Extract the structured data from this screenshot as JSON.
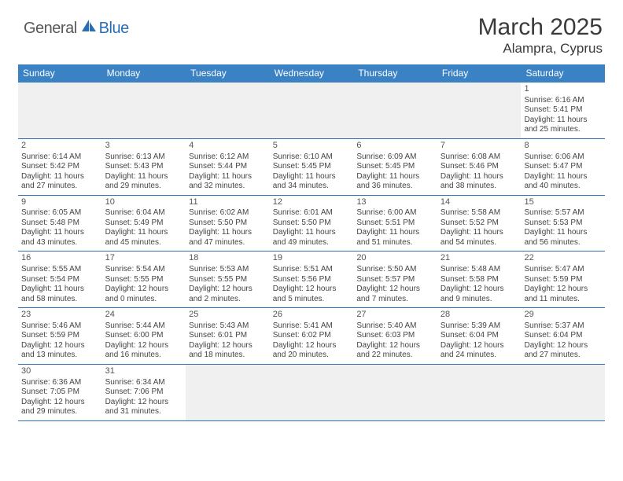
{
  "logo": {
    "part1": "General",
    "part2": "Blue"
  },
  "title": "March 2025",
  "location": "Alampra, Cyprus",
  "colors": {
    "header_bg": "#3b82c4",
    "border": "#2a6db5",
    "empty_bg": "#f0f0f0",
    "text": "#444444",
    "logo_gray": "#585858",
    "logo_blue": "#2a6db5"
  },
  "dow": [
    "Sunday",
    "Monday",
    "Tuesday",
    "Wednesday",
    "Thursday",
    "Friday",
    "Saturday"
  ],
  "weeks": [
    [
      null,
      null,
      null,
      null,
      null,
      null,
      {
        "d": "1",
        "sr": "6:16 AM",
        "ss": "5:41 PM",
        "dl": "11 hours and 25 minutes."
      }
    ],
    [
      {
        "d": "2",
        "sr": "6:14 AM",
        "ss": "5:42 PM",
        "dl": "11 hours and 27 minutes."
      },
      {
        "d": "3",
        "sr": "6:13 AM",
        "ss": "5:43 PM",
        "dl": "11 hours and 29 minutes."
      },
      {
        "d": "4",
        "sr": "6:12 AM",
        "ss": "5:44 PM",
        "dl": "11 hours and 32 minutes."
      },
      {
        "d": "5",
        "sr": "6:10 AM",
        "ss": "5:45 PM",
        "dl": "11 hours and 34 minutes."
      },
      {
        "d": "6",
        "sr": "6:09 AM",
        "ss": "5:45 PM",
        "dl": "11 hours and 36 minutes."
      },
      {
        "d": "7",
        "sr": "6:08 AM",
        "ss": "5:46 PM",
        "dl": "11 hours and 38 minutes."
      },
      {
        "d": "8",
        "sr": "6:06 AM",
        "ss": "5:47 PM",
        "dl": "11 hours and 40 minutes."
      }
    ],
    [
      {
        "d": "9",
        "sr": "6:05 AM",
        "ss": "5:48 PM",
        "dl": "11 hours and 43 minutes."
      },
      {
        "d": "10",
        "sr": "6:04 AM",
        "ss": "5:49 PM",
        "dl": "11 hours and 45 minutes."
      },
      {
        "d": "11",
        "sr": "6:02 AM",
        "ss": "5:50 PM",
        "dl": "11 hours and 47 minutes."
      },
      {
        "d": "12",
        "sr": "6:01 AM",
        "ss": "5:50 PM",
        "dl": "11 hours and 49 minutes."
      },
      {
        "d": "13",
        "sr": "6:00 AM",
        "ss": "5:51 PM",
        "dl": "11 hours and 51 minutes."
      },
      {
        "d": "14",
        "sr": "5:58 AM",
        "ss": "5:52 PM",
        "dl": "11 hours and 54 minutes."
      },
      {
        "d": "15",
        "sr": "5:57 AM",
        "ss": "5:53 PM",
        "dl": "11 hours and 56 minutes."
      }
    ],
    [
      {
        "d": "16",
        "sr": "5:55 AM",
        "ss": "5:54 PM",
        "dl": "11 hours and 58 minutes."
      },
      {
        "d": "17",
        "sr": "5:54 AM",
        "ss": "5:55 PM",
        "dl": "12 hours and 0 minutes."
      },
      {
        "d": "18",
        "sr": "5:53 AM",
        "ss": "5:55 PM",
        "dl": "12 hours and 2 minutes."
      },
      {
        "d": "19",
        "sr": "5:51 AM",
        "ss": "5:56 PM",
        "dl": "12 hours and 5 minutes."
      },
      {
        "d": "20",
        "sr": "5:50 AM",
        "ss": "5:57 PM",
        "dl": "12 hours and 7 minutes."
      },
      {
        "d": "21",
        "sr": "5:48 AM",
        "ss": "5:58 PM",
        "dl": "12 hours and 9 minutes."
      },
      {
        "d": "22",
        "sr": "5:47 AM",
        "ss": "5:59 PM",
        "dl": "12 hours and 11 minutes."
      }
    ],
    [
      {
        "d": "23",
        "sr": "5:46 AM",
        "ss": "5:59 PM",
        "dl": "12 hours and 13 minutes."
      },
      {
        "d": "24",
        "sr": "5:44 AM",
        "ss": "6:00 PM",
        "dl": "12 hours and 16 minutes."
      },
      {
        "d": "25",
        "sr": "5:43 AM",
        "ss": "6:01 PM",
        "dl": "12 hours and 18 minutes."
      },
      {
        "d": "26",
        "sr": "5:41 AM",
        "ss": "6:02 PM",
        "dl": "12 hours and 20 minutes."
      },
      {
        "d": "27",
        "sr": "5:40 AM",
        "ss": "6:03 PM",
        "dl": "12 hours and 22 minutes."
      },
      {
        "d": "28",
        "sr": "5:39 AM",
        "ss": "6:04 PM",
        "dl": "12 hours and 24 minutes."
      },
      {
        "d": "29",
        "sr": "5:37 AM",
        "ss": "6:04 PM",
        "dl": "12 hours and 27 minutes."
      }
    ],
    [
      {
        "d": "30",
        "sr": "6:36 AM",
        "ss": "7:05 PM",
        "dl": "12 hours and 29 minutes."
      },
      {
        "d": "31",
        "sr": "6:34 AM",
        "ss": "7:06 PM",
        "dl": "12 hours and 31 minutes."
      },
      null,
      null,
      null,
      null,
      null
    ]
  ],
  "labels": {
    "sunrise": "Sunrise:",
    "sunset": "Sunset:",
    "daylight": "Daylight:"
  }
}
